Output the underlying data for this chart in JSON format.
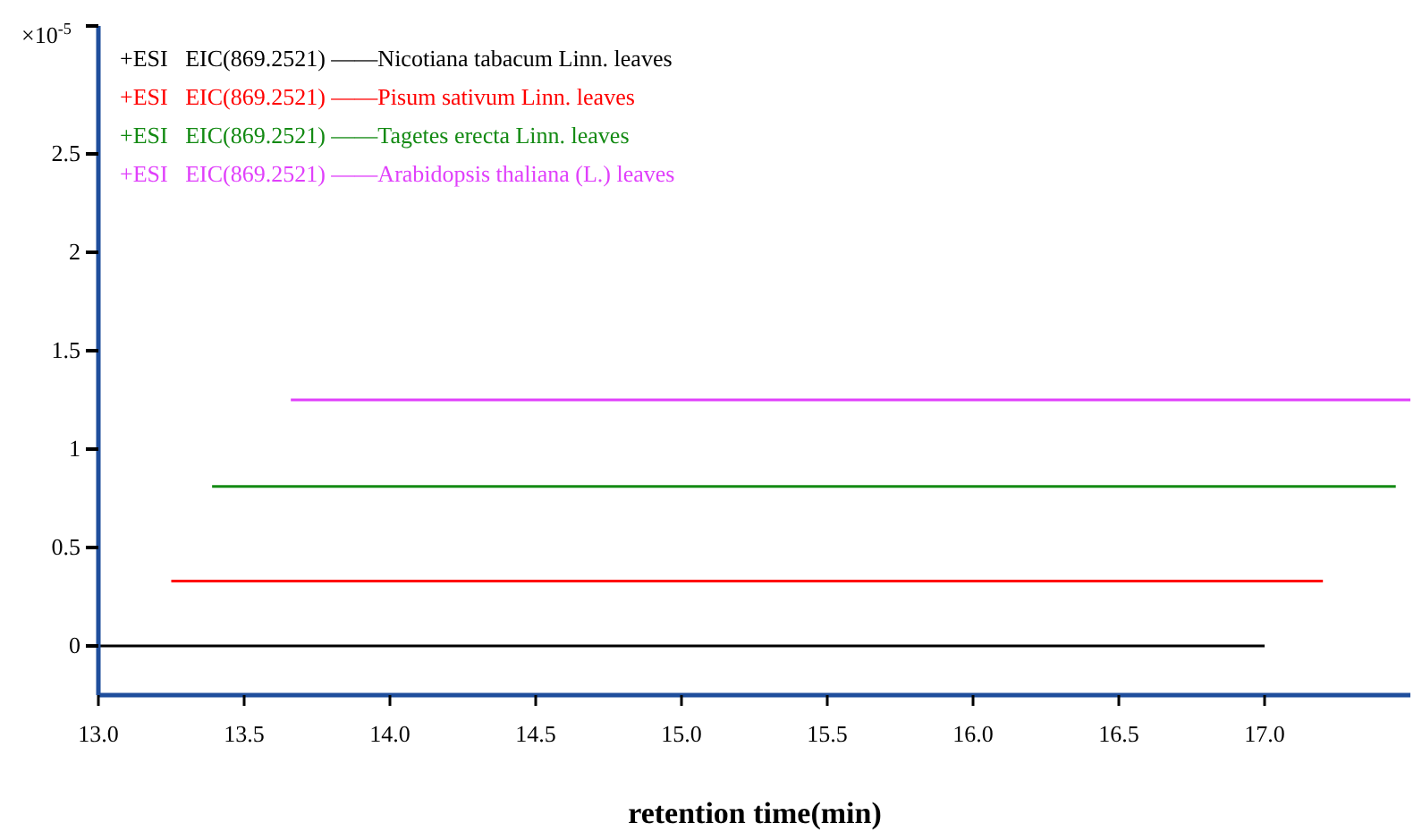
{
  "chart_data": {
    "type": "line",
    "xlabel": "retention time(min)",
    "annotations": [
      "×10$^{-5}$"
    ],
    "xlim": [
      13,
      17.5
    ],
    "xticks": [
      {
        "value": 13,
        "label": "13.0"
      },
      {
        "value": 13.5,
        "label": "13.5"
      },
      {
        "value": 14,
        "label": "14.0"
      },
      {
        "value": 14.5,
        "label": "14.5"
      },
      {
        "value": 15,
        "label": "15.0"
      },
      {
        "value": 15.5,
        "label": "15.5"
      },
      {
        "value": 16,
        "label": "16.0"
      },
      {
        "value": 16.5,
        "label": "16.5"
      },
      {
        "value": 17,
        "label": "17.0"
      }
    ],
    "ylim": [
      -0.25,
      3.15
    ],
    "yticks": [
      0,
      0.5,
      1,
      1.5,
      2,
      2.5
    ],
    "grid": false,
    "legend": "top left",
    "marker": "none",
    "line_style": "solid",
    "series": [
      {
        "name": "+ESI   EIC(869.2521) ——Nicotiana tabacum Linn. leaves",
        "color": "#000000",
        "x": [
          13,
          17
        ],
        "values": [
          0,
          0
        ]
      },
      {
        "name": "+ESI   EIC(869.2521) ——Pisum sativum Linn. leaves",
        "color": "#ff0000",
        "x": [
          13.25,
          17.2
        ],
        "values": [
          0.33,
          0.33
        ]
      },
      {
        "name": "+ESI   EIC(869.2521) ——Tagetes erecta Linn. leaves",
        "color": "#138a13",
        "x": [
          13.39,
          17.45
        ],
        "values": [
          0.81,
          0.81
        ]
      },
      {
        "name": "+ESI   EIC(869.2521) ——Arabidopsis thaliana (L.) leaves",
        "color": "#e040fb",
        "x": [
          13.66,
          17.5
        ],
        "values": [
          1.25,
          1.25
        ]
      }
    ]
  }
}
